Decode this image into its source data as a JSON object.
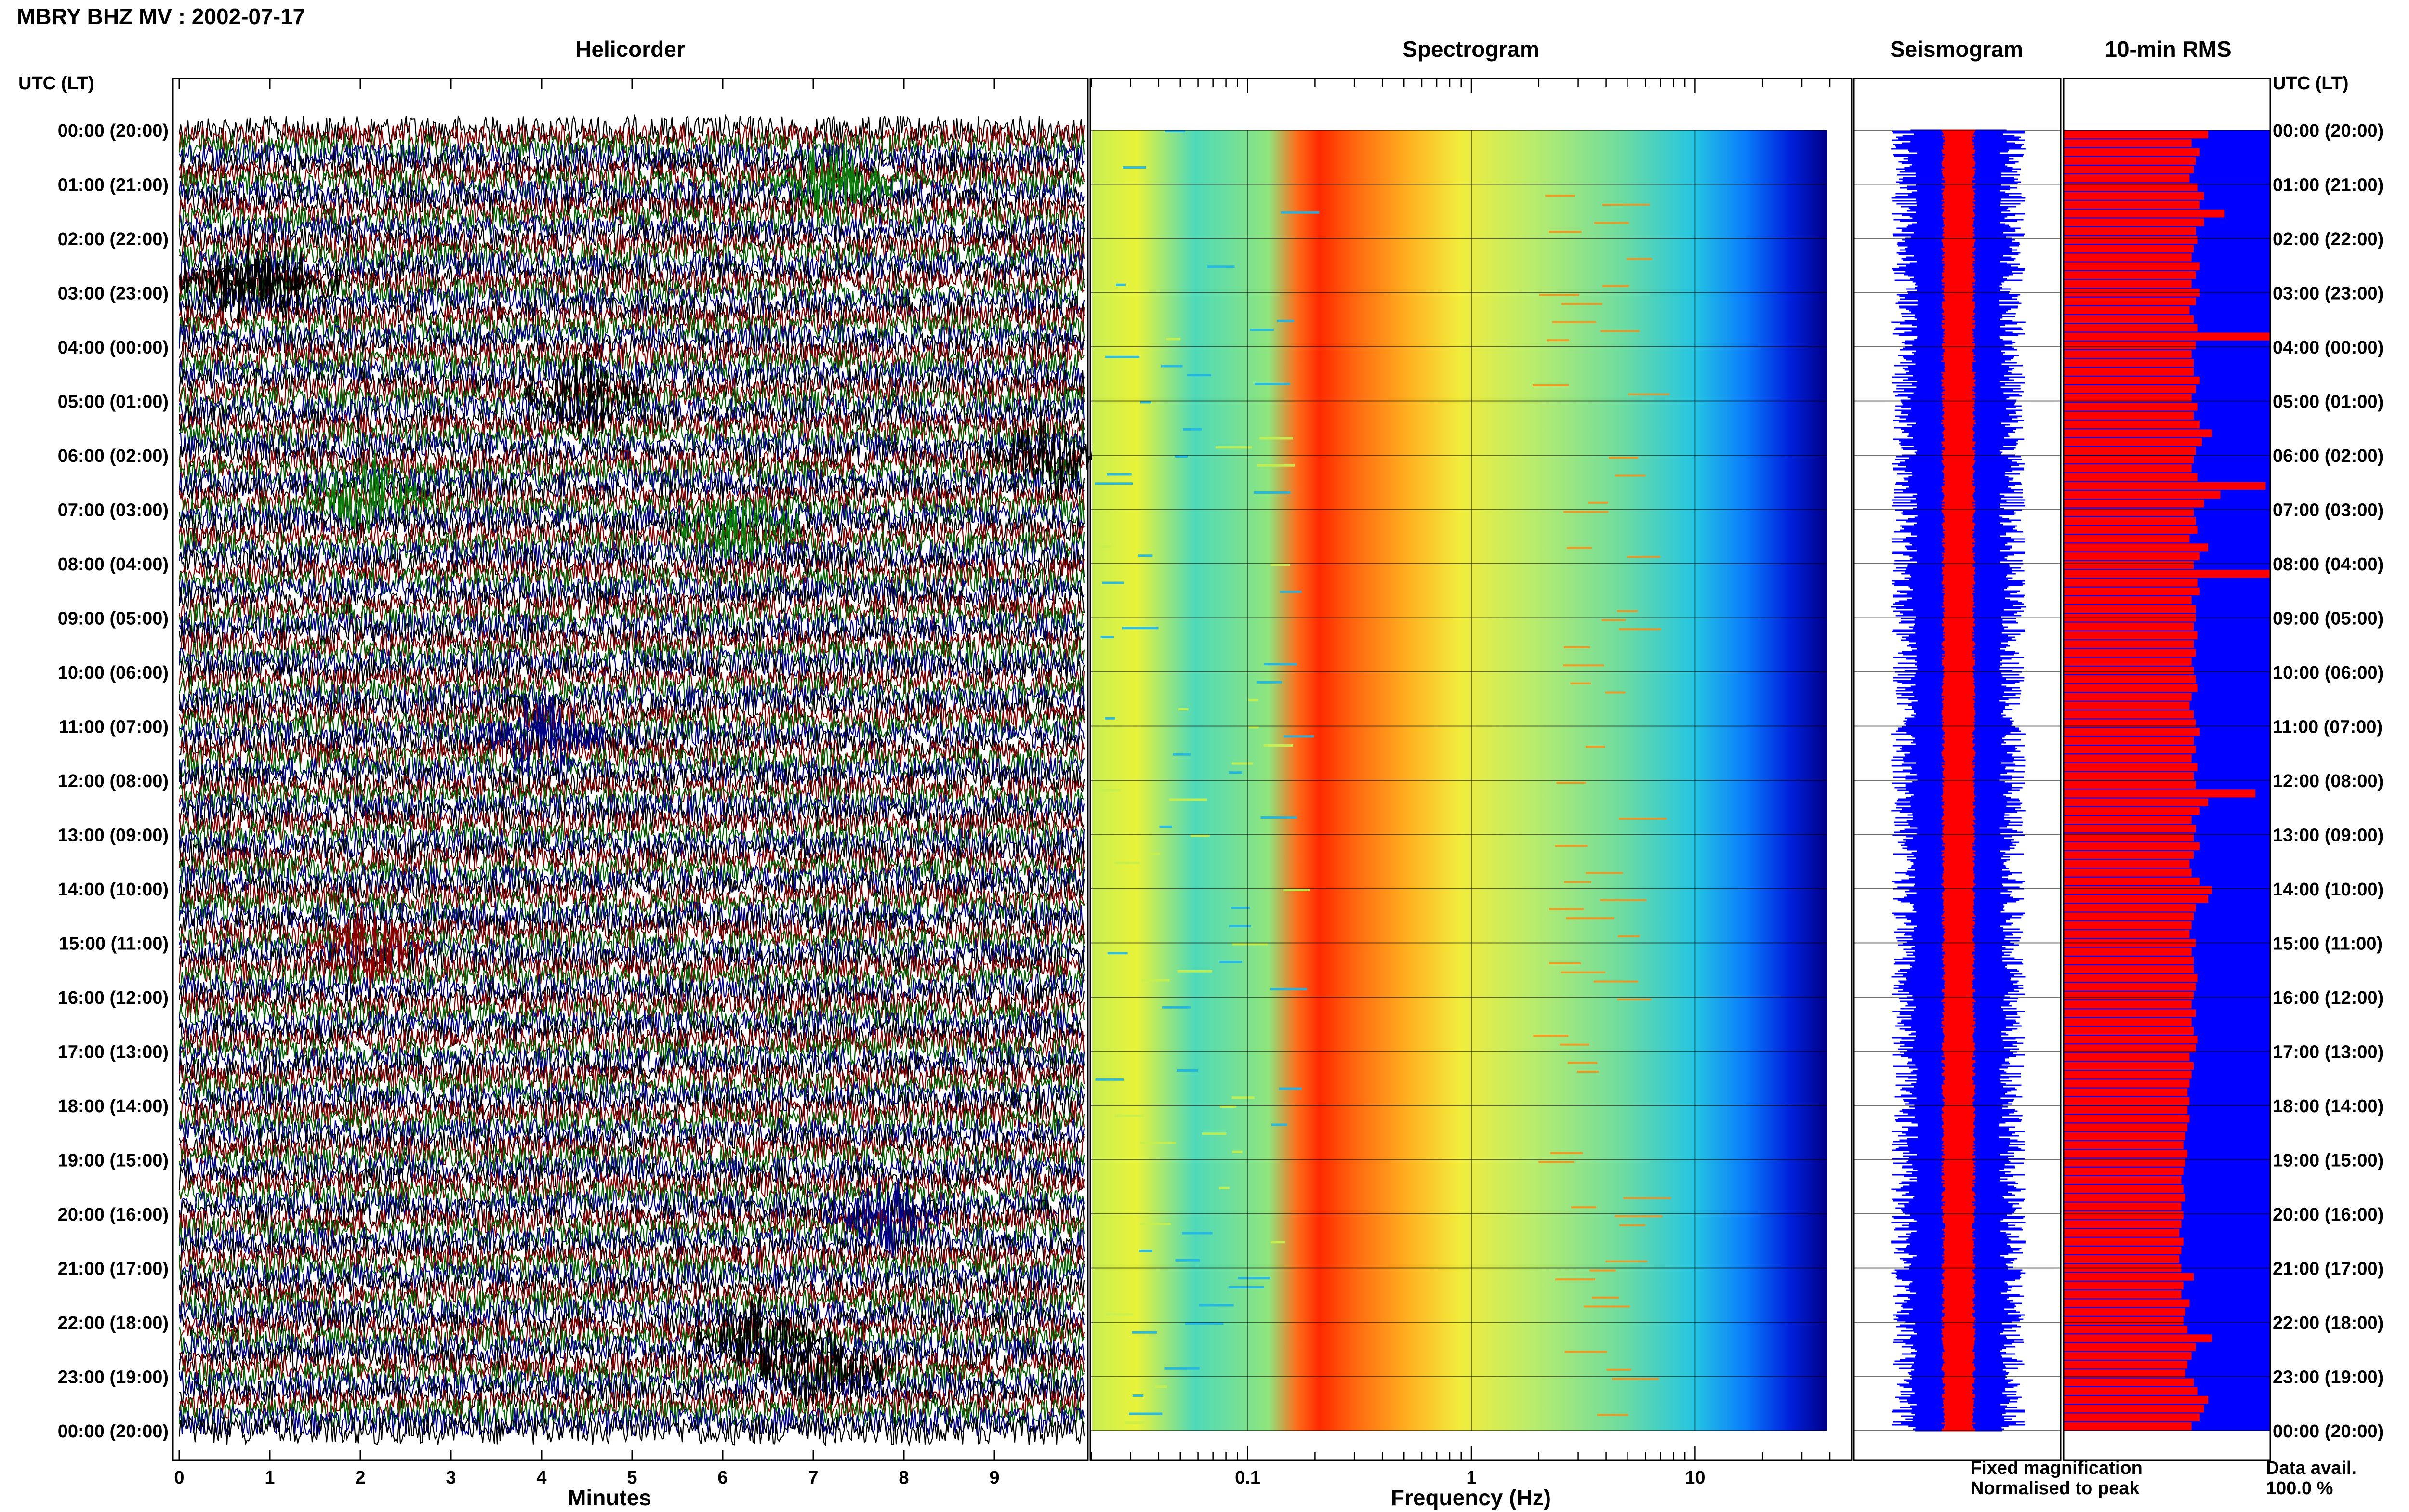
{
  "figure": {
    "title": "MBRY BHZ MV : 2002-07-17",
    "time_axis_label": "UTC (LT)",
    "panels": {
      "helicorder": "Helicorder",
      "spectrogram": "Spectrogram",
      "seismogram": "Seismogram",
      "rms": "10-min RMS"
    },
    "x_axis_labels": {
      "helicorder": "Minutes",
      "spectrogram": "Frequency (Hz)"
    },
    "legend": {
      "fixed_label": "Fixed magnification",
      "fixed_color": "#0000ff",
      "normalised_label": "Normalised to peak",
      "normalised_color": "#ff0000"
    },
    "data_availability": {
      "label": "Data avail.",
      "value": "100.0 %"
    }
  },
  "chart_data": [
    {
      "type": "line",
      "name": "helicorder",
      "title": "Helicorder",
      "xlabel": "Minutes",
      "x_ticks": [
        "0",
        "1",
        "2",
        "3",
        "4",
        "5",
        "6",
        "7",
        "8",
        "9"
      ],
      "xlim": [
        0,
        10
      ],
      "trace_colors": [
        "#000000",
        "#8b0000",
        "#006400",
        "#00008b"
      ],
      "y_tick_labels": [
        "00:00 (20:00)",
        "01:00 (21:00)",
        "02:00 (22:00)",
        "03:00 (23:00)",
        "04:00 (00:00)",
        "05:00 (01:00)",
        "06:00 (02:00)",
        "07:00 (03:00)",
        "08:00 (04:00)",
        "09:00 (05:00)",
        "10:00 (06:00)",
        "11:00 (07:00)",
        "12:00 (08:00)",
        "13:00 (09:00)",
        "14:00 (10:00)",
        "15:00 (11:00)",
        "16:00 (12:00)",
        "17:00 (13:00)",
        "18:00 (14:00)",
        "19:00 (15:00)",
        "20:00 (16:00)",
        "21:00 (17:00)",
        "22:00 (18:00)",
        "23:00 (19:00)",
        "00:00 (20:00)"
      ],
      "events": [
        {
          "hour": 1.0,
          "minute": 7.2,
          "color": "green"
        },
        {
          "hour": 2.8,
          "minute": 0.7,
          "color": "black"
        },
        {
          "hour": 2.8,
          "minute": 1.1,
          "color": "black"
        },
        {
          "hour": 4.9,
          "minute": 4.5,
          "color": "black"
        },
        {
          "hour": 6.0,
          "minute": 9.6,
          "color": "black"
        },
        {
          "hour": 6.7,
          "minute": 2.1,
          "color": "green"
        },
        {
          "hour": 7.3,
          "minute": 6.2,
          "color": "green"
        },
        {
          "hour": 11.2,
          "minute": 4.0,
          "color": "blue"
        },
        {
          "hour": 15.1,
          "minute": 2.1,
          "color": "darkred"
        },
        {
          "hour": 20.0,
          "minute": 7.8,
          "color": "blue"
        },
        {
          "hour": 22.3,
          "minute": 6.4,
          "color": "black"
        },
        {
          "hour": 22.9,
          "minute": 7.1,
          "color": "black"
        }
      ]
    },
    {
      "type": "heatmap",
      "name": "spectrogram",
      "title": "Spectrogram",
      "xlabel": "Frequency (Hz)",
      "x_scale": "log",
      "xlim": [
        0.02,
        50
      ],
      "x_tick_labels": [
        "0.1",
        "1",
        "10"
      ],
      "x_tick_values": [
        0.1,
        1,
        10
      ],
      "rows_per_hour": 6,
      "dominant_band_hz": [
        0.2,
        0.6
      ],
      "colormap": "jet"
    },
    {
      "type": "line",
      "name": "seismogram",
      "title": "Seismogram",
      "series": [
        {
          "name": "Fixed magnification",
          "color": "#0000ff"
        },
        {
          "name": "Normalised to peak",
          "color": "#ff0000"
        }
      ]
    },
    {
      "type": "bar",
      "name": "rms",
      "title": "10-min RMS",
      "orientation": "horizontal",
      "bars_per_hour": 6,
      "values": [
        0.7,
        0.62,
        0.66,
        0.64,
        0.63,
        0.61,
        0.65,
        0.68,
        0.66,
        0.78,
        0.68,
        0.64,
        0.65,
        0.63,
        0.62,
        0.66,
        0.64,
        0.62,
        0.66,
        0.64,
        0.61,
        0.63,
        0.65,
        1.0,
        0.64,
        0.62,
        0.63,
        0.63,
        0.66,
        0.64,
        0.62,
        0.65,
        0.63,
        0.66,
        0.72,
        0.67,
        0.64,
        0.63,
        0.62,
        0.65,
        0.98,
        0.76,
        0.68,
        0.63,
        0.64,
        0.65,
        0.61,
        0.7,
        0.66,
        0.63,
        1.0,
        0.65,
        0.66,
        0.62,
        0.64,
        0.64,
        0.63,
        0.65,
        0.63,
        0.64,
        0.62,
        0.63,
        0.64,
        0.65,
        0.62,
        0.61,
        0.63,
        0.64,
        0.66,
        0.63,
        0.64,
        0.62,
        0.65,
        0.63,
        0.64,
        0.93,
        0.7,
        0.66,
        0.62,
        0.64,
        0.63,
        0.66,
        0.63,
        0.61,
        0.62,
        0.66,
        0.72,
        0.7,
        0.64,
        0.63,
        0.62,
        0.61,
        0.64,
        0.62,
        0.63,
        0.63,
        0.65,
        0.64,
        0.63,
        0.62,
        0.64,
        0.62,
        0.63,
        0.65,
        0.64,
        0.61,
        0.63,
        0.62,
        0.61,
        0.6,
        0.61,
        0.6,
        0.61,
        0.6,
        0.59,
        0.58,
        0.6,
        0.59,
        0.58,
        0.57,
        0.58,
        0.59,
        0.57,
        0.58,
        0.57,
        0.56,
        0.58,
        0.57,
        0.56,
        0.57,
        0.63,
        0.58,
        0.57,
        0.61,
        0.59,
        0.58,
        0.6,
        0.72,
        0.64,
        0.62,
        0.6,
        0.59,
        0.63,
        0.65,
        0.7,
        0.68,
        0.66,
        0.62
      ],
      "bar_color": "#ff0000",
      "background_color": "#0000ff"
    }
  ]
}
